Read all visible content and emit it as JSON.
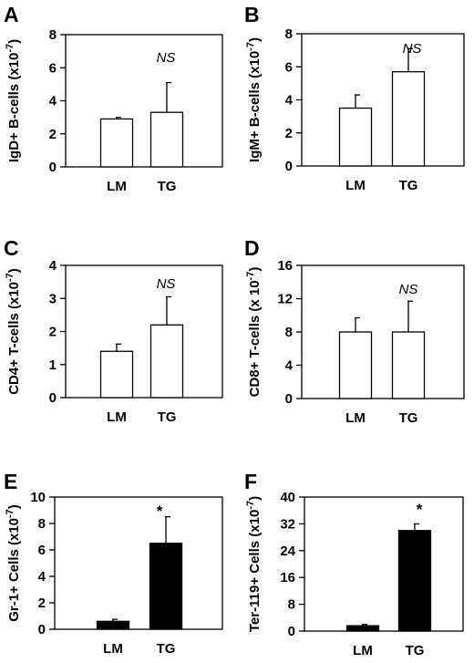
{
  "chart_data": [
    {
      "type": "bar",
      "panel": "A",
      "categories": [
        "LM",
        "TG"
      ],
      "values": [
        2.9,
        3.3
      ],
      "errors": [
        0.1,
        1.8
      ],
      "ylabel": "IgD+ B-cells (x10",
      "ylabel_sup": "-7",
      "ylabel_end": ")",
      "ylim": [
        0,
        8
      ],
      "yticks": [
        0,
        2,
        4,
        6,
        8
      ],
      "annotation": "NS",
      "bar_fill": "#ffffff"
    },
    {
      "type": "bar",
      "panel": "B",
      "categories": [
        "LM",
        "TG"
      ],
      "values": [
        3.5,
        5.7
      ],
      "errors": [
        0.8,
        1.4
      ],
      "ylabel": "IgM+ B-cells (x10",
      "ylabel_sup": "-7",
      "ylabel_end": ")",
      "ylim": [
        0,
        8
      ],
      "yticks": [
        0,
        2,
        4,
        6,
        8
      ],
      "annotation": "NS",
      "bar_fill": "#ffffff"
    },
    {
      "type": "bar",
      "panel": "C",
      "categories": [
        "LM",
        "TG"
      ],
      "values": [
        1.4,
        2.2
      ],
      "errors": [
        0.22,
        0.85
      ],
      "ylabel": "CD4+ T-cells (x10",
      "ylabel_sup": "-7",
      "ylabel_end": ")",
      "ylim": [
        0,
        4
      ],
      "yticks": [
        0,
        1,
        2,
        3,
        4
      ],
      "annotation": "NS",
      "bar_fill": "#ffffff"
    },
    {
      "type": "bar",
      "panel": "D",
      "categories": [
        "LM",
        "TG"
      ],
      "values": [
        8.0,
        8.0
      ],
      "errors": [
        1.7,
        3.7
      ],
      "ylabel": "CD8+ T-cells (x 10",
      "ylabel_sup": "-7",
      "ylabel_end": ")",
      "ylim": [
        0,
        16
      ],
      "yticks": [
        0,
        4,
        8,
        12,
        16
      ],
      "annotation": "NS",
      "bar_fill": "#ffffff"
    },
    {
      "type": "bar",
      "panel": "E",
      "categories": [
        "LM",
        "TG"
      ],
      "values": [
        0.6,
        6.5
      ],
      "errors": [
        0.15,
        2.0
      ],
      "ylabel": "Gr-1+ Cells (x10",
      "ylabel_sup": "-7",
      "ylabel_end": ")",
      "ylim": [
        0,
        10
      ],
      "yticks": [
        0,
        2,
        4,
        6,
        8,
        10
      ],
      "annotation": "*",
      "bar_fill": "#000000"
    },
    {
      "type": "bar",
      "panel": "F",
      "categories": [
        "LM",
        "TG"
      ],
      "values": [
        1.6,
        30.0
      ],
      "errors": [
        0.4,
        2.0
      ],
      "ylabel": "Ter-119+ Cells (x10",
      "ylabel_sup": "-7",
      "ylabel_end": ")",
      "ylim": [
        0,
        40
      ],
      "yticks": [
        0,
        8,
        16,
        24,
        32,
        40
      ],
      "annotation": "*",
      "bar_fill": "#000000"
    }
  ]
}
